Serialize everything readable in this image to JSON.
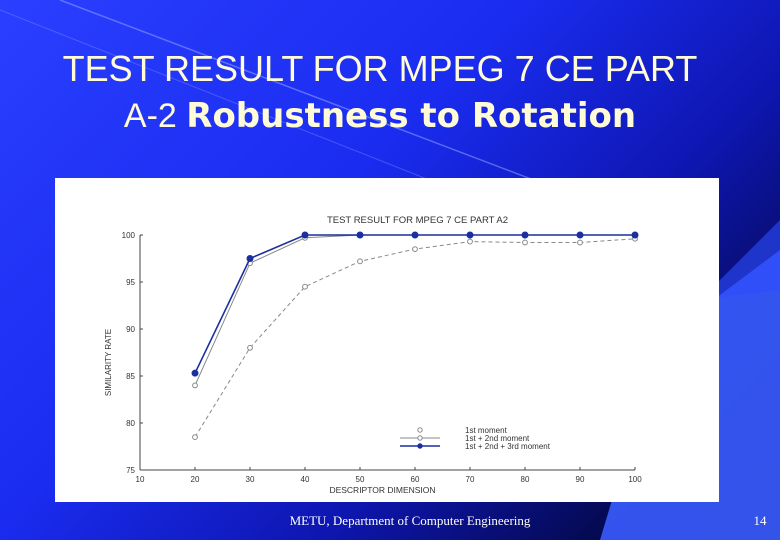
{
  "slide": {
    "title_line1": "TEST RESULT FOR MPEG 7 CE PART",
    "title_line2_prefix": "A-2 ",
    "title_line2_bold": "Robustness to Rotation",
    "footer": "METU, Department of Computer Engineering",
    "page_number": "14",
    "colors": {
      "background": "#1a2cf0",
      "title": "#fffbd6",
      "accent_dark": "#000022"
    }
  },
  "chart_data": {
    "type": "line",
    "title": "TEST RESULT FOR MPEG 7 CE PART A2",
    "xlabel": "DESCRIPTOR DIMENSION",
    "ylabel": "SIMILARITY RATE",
    "xlim": [
      10,
      100
    ],
    "ylim": [
      75,
      100
    ],
    "xticks": [
      10,
      20,
      30,
      40,
      50,
      60,
      70,
      80,
      90,
      100
    ],
    "yticks": [
      75,
      80,
      85,
      90,
      95,
      100
    ],
    "x": [
      20,
      30,
      40,
      50,
      60,
      70,
      80,
      90,
      100
    ],
    "legend_position": "bottom-right",
    "grid": false,
    "series": [
      {
        "name": "1st moment",
        "values": [
          78.5,
          88,
          94.5,
          97.2,
          98.5,
          99.3,
          99.2,
          99.2,
          99.6
        ],
        "color": "#888888",
        "dash": "4,3",
        "marker": "open"
      },
      {
        "name": "1st + 2nd moment",
        "values": [
          84,
          97,
          99.7,
          100,
          100,
          100,
          100,
          100,
          100
        ],
        "color": "#888888",
        "dash": "",
        "marker": "open"
      },
      {
        "name": "1st + 2nd + 3rd moment",
        "values": [
          85.3,
          97.5,
          100,
          100,
          100,
          100,
          100,
          100,
          100
        ],
        "color": "#1a2fa0",
        "dash": "",
        "marker": "filled"
      }
    ]
  }
}
